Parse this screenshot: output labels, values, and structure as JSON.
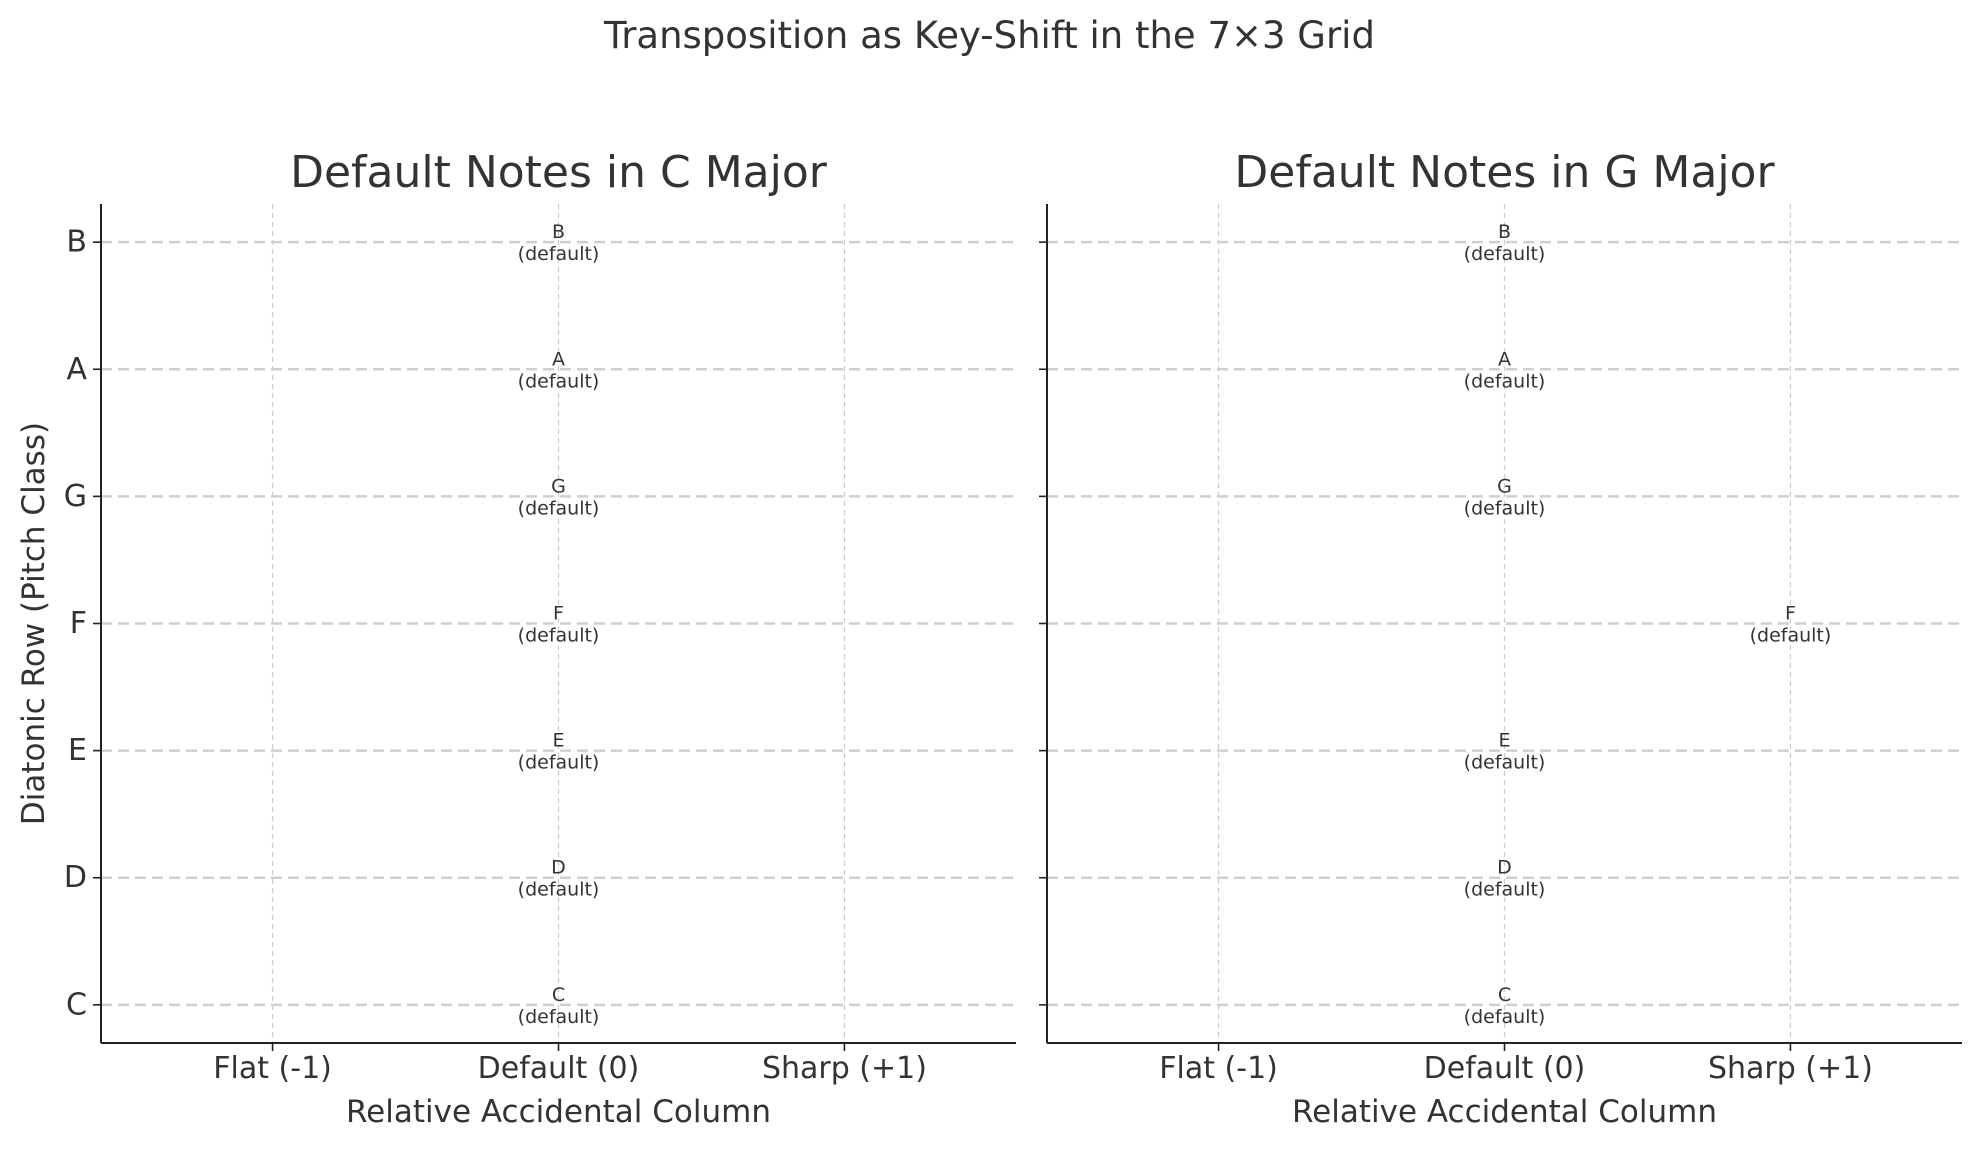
{
  "suptitle": "Transposition as Key-Shift in the 7×3 Grid",
  "chart_data": [
    {
      "type": "scatter",
      "title": "Default Notes in C Major",
      "xlabel": "Relative Accidental Column",
      "ylabel": "Diatonic Row (Pitch Class)",
      "x_ticks": [
        -1,
        0,
        1
      ],
      "x_tick_labels": [
        "Flat (-1)",
        "Default (0)",
        "Sharp (+1)"
      ],
      "y_ticks": [
        0,
        1,
        2,
        3,
        4,
        5,
        6
      ],
      "y_tick_labels": [
        "C",
        "D",
        "E",
        "F",
        "G",
        "A",
        "B"
      ],
      "xlim": [
        -1.6,
        1.6
      ],
      "ylim": [
        -0.3,
        6.3
      ],
      "grid": true,
      "annotation_suffix": "(default)",
      "points": [
        {
          "note": "C",
          "x": 0,
          "y": 0
        },
        {
          "note": "D",
          "x": 0,
          "y": 1
        },
        {
          "note": "E",
          "x": 0,
          "y": 2
        },
        {
          "note": "F",
          "x": 0,
          "y": 3
        },
        {
          "note": "G",
          "x": 0,
          "y": 4
        },
        {
          "note": "A",
          "x": 0,
          "y": 5
        },
        {
          "note": "B",
          "x": 0,
          "y": 6
        }
      ]
    },
    {
      "type": "scatter",
      "title": "Default Notes in G Major",
      "xlabel": "Relative Accidental Column",
      "ylabel": "",
      "x_ticks": [
        -1,
        0,
        1
      ],
      "x_tick_labels": [
        "Flat (-1)",
        "Default (0)",
        "Sharp (+1)"
      ],
      "y_ticks": [
        0,
        1,
        2,
        3,
        4,
        5,
        6
      ],
      "y_tick_labels": [
        "",
        "",
        "",
        "",
        "",
        "",
        ""
      ],
      "xlim": [
        -1.6,
        1.6
      ],
      "ylim": [
        -0.3,
        6.3
      ],
      "grid": true,
      "annotation_suffix": "(default)",
      "points": [
        {
          "note": "C",
          "x": 0,
          "y": 0
        },
        {
          "note": "D",
          "x": 0,
          "y": 1
        },
        {
          "note": "E",
          "x": 0,
          "y": 2
        },
        {
          "note": "F",
          "x": 1,
          "y": 3
        },
        {
          "note": "G",
          "x": 0,
          "y": 4
        },
        {
          "note": "A",
          "x": 0,
          "y": 5
        },
        {
          "note": "B",
          "x": 0,
          "y": 6
        }
      ]
    }
  ]
}
